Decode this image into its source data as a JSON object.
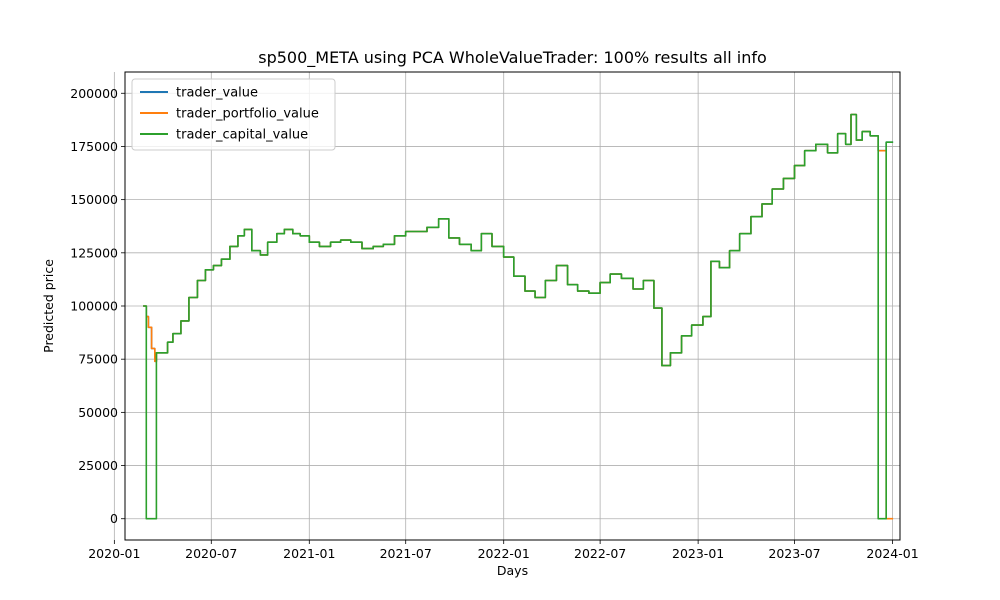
{
  "chart_data": {
    "type": "line",
    "title": "sp500_META using PCA WholeValueTrader: 100% results all info",
    "xlabel": "Days",
    "ylabel": "Predicted price",
    "xlim": [
      "2020-01-21",
      "2024-01-15"
    ],
    "ylim": [
      -10000,
      210000
    ],
    "x_ticks": [
      "2020-01",
      "2020-07",
      "2021-01",
      "2021-07",
      "2022-01",
      "2022-07",
      "2023-01",
      "2023-07",
      "2024-01"
    ],
    "y_ticks": [
      0,
      25000,
      50000,
      75000,
      100000,
      125000,
      150000,
      175000,
      200000
    ],
    "grid": true,
    "legend_position": "top-left",
    "colors": {
      "trader_value": "#1f77b4",
      "trader_portfolio_value": "#ff7f0e",
      "trader_capital_value": "#2ca02c"
    },
    "series": [
      {
        "name": "trader_value",
        "x": [
          "2020-02-24",
          "2020-03-01",
          "2020-03-05",
          "2020-03-11",
          "2020-03-17",
          "2020-03-20",
          "2020-04-10",
          "2020-04-20",
          "2020-05-05",
          "2020-05-20",
          "2020-06-05",
          "2020-06-20",
          "2020-07-05",
          "2020-07-20",
          "2020-08-05",
          "2020-08-20",
          "2020-09-01",
          "2020-09-15",
          "2020-10-01",
          "2020-10-15",
          "2020-11-01",
          "2020-11-15",
          "2020-12-01",
          "2020-12-15",
          "2021-01-01",
          "2021-01-20",
          "2021-02-10",
          "2021-03-01",
          "2021-03-20",
          "2021-04-10",
          "2021-05-01",
          "2021-05-20",
          "2021-06-10",
          "2021-07-01",
          "2021-07-20",
          "2021-08-10",
          "2021-09-01",
          "2021-09-20",
          "2021-10-10",
          "2021-11-01",
          "2021-11-20",
          "2021-12-10",
          "2022-01-01",
          "2022-01-20",
          "2022-02-10",
          "2022-03-01",
          "2022-03-20",
          "2022-04-10",
          "2022-05-01",
          "2022-05-20",
          "2022-06-10",
          "2022-07-01",
          "2022-07-20",
          "2022-08-10",
          "2022-09-01",
          "2022-09-20",
          "2022-10-10",
          "2022-10-25",
          "2022-11-10",
          "2022-12-01",
          "2022-12-20",
          "2023-01-10",
          "2023-01-25",
          "2023-02-10",
          "2023-03-01",
          "2023-03-20",
          "2023-04-10",
          "2023-05-01",
          "2023-05-20",
          "2023-06-10",
          "2023-07-01",
          "2023-07-20",
          "2023-08-10",
          "2023-09-01",
          "2023-09-20",
          "2023-10-05",
          "2023-10-15",
          "2023-10-25",
          "2023-11-05",
          "2023-11-20",
          "2023-12-05",
          "2023-12-20",
          "2024-01-02"
        ],
        "values": [
          100000,
          95000,
          90000,
          80000,
          74000,
          78000,
          83000,
          87000,
          93000,
          104000,
          112000,
          117000,
          119000,
          122000,
          128000,
          133000,
          136000,
          126000,
          124000,
          130000,
          134000,
          136000,
          134000,
          133000,
          130000,
          128000,
          130000,
          131000,
          130000,
          127000,
          128000,
          129000,
          133000,
          135000,
          135000,
          137000,
          141000,
          132000,
          129000,
          126000,
          134000,
          128000,
          123000,
          114000,
          107000,
          104000,
          112000,
          119000,
          110000,
          107000,
          106000,
          111000,
          115000,
          113000,
          108000,
          112000,
          99000,
          72000,
          78000,
          86000,
          91000,
          95000,
          121000,
          118000,
          126000,
          134000,
          142000,
          148000,
          155000,
          160000,
          166000,
          173000,
          176000,
          172000,
          181000,
          176000,
          190000,
          178000,
          182000,
          180000,
          173000,
          177000,
          177000
        ]
      },
      {
        "name": "trader_portfolio_value",
        "x": [
          "2020-02-24",
          "2020-03-01",
          "2020-03-05",
          "2020-03-11",
          "2020-03-17",
          "2020-03-20",
          "2020-04-10",
          "2020-04-20",
          "2020-05-05",
          "2020-05-20",
          "2020-06-05",
          "2020-06-20",
          "2020-07-05",
          "2020-07-20",
          "2020-08-05",
          "2020-08-20",
          "2020-09-01",
          "2020-09-15",
          "2020-10-01",
          "2020-10-15",
          "2020-11-01",
          "2020-11-15",
          "2020-12-01",
          "2020-12-15",
          "2021-01-01",
          "2021-01-20",
          "2021-02-10",
          "2021-03-01",
          "2021-03-20",
          "2021-04-10",
          "2021-05-01",
          "2021-05-20",
          "2021-06-10",
          "2021-07-01",
          "2021-07-20",
          "2021-08-10",
          "2021-09-01",
          "2021-09-20",
          "2021-10-10",
          "2021-11-01",
          "2021-11-20",
          "2021-12-10",
          "2022-01-01",
          "2022-01-20",
          "2022-02-10",
          "2022-03-01",
          "2022-03-20",
          "2022-04-10",
          "2022-05-01",
          "2022-05-20",
          "2022-06-10",
          "2022-07-01",
          "2022-07-20",
          "2022-08-10",
          "2022-09-01",
          "2022-09-20",
          "2022-10-10",
          "2022-10-25",
          "2022-11-10",
          "2022-12-01",
          "2022-12-20",
          "2023-01-10",
          "2023-01-25",
          "2023-02-10",
          "2023-03-01",
          "2023-03-20",
          "2023-04-10",
          "2023-05-01",
          "2023-05-20",
          "2023-06-10",
          "2023-07-01",
          "2023-07-20",
          "2023-08-10",
          "2023-09-01",
          "2023-09-20",
          "2023-10-05",
          "2023-10-15",
          "2023-10-25",
          "2023-11-05",
          "2023-11-20",
          "2023-12-05",
          "2023-12-20",
          "2024-01-02"
        ],
        "values": [
          100000,
          95000,
          90000,
          80000,
          74000,
          78000,
          83000,
          87000,
          93000,
          104000,
          112000,
          117000,
          119000,
          122000,
          128000,
          133000,
          136000,
          126000,
          124000,
          130000,
          134000,
          136000,
          134000,
          133000,
          130000,
          128000,
          130000,
          131000,
          130000,
          127000,
          128000,
          129000,
          133000,
          135000,
          135000,
          137000,
          141000,
          132000,
          129000,
          126000,
          134000,
          128000,
          123000,
          114000,
          107000,
          104000,
          112000,
          119000,
          110000,
          107000,
          106000,
          111000,
          115000,
          113000,
          108000,
          112000,
          99000,
          72000,
          78000,
          86000,
          91000,
          95000,
          121000,
          118000,
          126000,
          134000,
          142000,
          148000,
          155000,
          160000,
          166000,
          173000,
          176000,
          172000,
          181000,
          176000,
          190000,
          178000,
          182000,
          180000,
          173000,
          0,
          0
        ]
      },
      {
        "name": "trader_capital_value",
        "x": [
          "2020-02-24",
          "2020-03-01",
          "2020-03-05",
          "2020-03-11",
          "2020-03-17",
          "2020-03-20",
          "2020-04-10",
          "2020-04-20",
          "2020-05-05",
          "2020-05-20",
          "2020-06-05",
          "2020-06-20",
          "2020-07-05",
          "2020-07-20",
          "2020-08-05",
          "2020-08-20",
          "2020-09-01",
          "2020-09-15",
          "2020-10-01",
          "2020-10-15",
          "2020-11-01",
          "2020-11-15",
          "2020-12-01",
          "2020-12-15",
          "2021-01-01",
          "2021-01-20",
          "2021-02-10",
          "2021-03-01",
          "2021-03-20",
          "2021-04-10",
          "2021-05-01",
          "2021-05-20",
          "2021-06-10",
          "2021-07-01",
          "2021-07-20",
          "2021-08-10",
          "2021-09-01",
          "2021-09-20",
          "2021-10-10",
          "2021-11-01",
          "2021-11-20",
          "2021-12-10",
          "2022-01-01",
          "2022-01-20",
          "2022-02-10",
          "2022-03-01",
          "2022-03-20",
          "2022-04-10",
          "2022-05-01",
          "2022-05-20",
          "2022-06-10",
          "2022-07-01",
          "2022-07-20",
          "2022-08-10",
          "2022-09-01",
          "2022-09-20",
          "2022-10-10",
          "2022-10-25",
          "2022-11-10",
          "2022-12-01",
          "2022-12-20",
          "2023-01-10",
          "2023-01-25",
          "2023-02-10",
          "2023-03-01",
          "2023-03-20",
          "2023-04-10",
          "2023-05-01",
          "2023-05-20",
          "2023-06-10",
          "2023-07-01",
          "2023-07-20",
          "2023-08-10",
          "2023-09-01",
          "2023-09-20",
          "2023-10-05",
          "2023-10-15",
          "2023-10-25",
          "2023-11-05",
          "2023-11-20",
          "2023-12-05",
          "2023-12-20",
          "2024-01-02"
        ],
        "values": [
          100000,
          0,
          0,
          0,
          0,
          78000,
          83000,
          87000,
          93000,
          104000,
          112000,
          117000,
          119000,
          122000,
          128000,
          133000,
          136000,
          126000,
          124000,
          130000,
          134000,
          136000,
          134000,
          133000,
          130000,
          128000,
          130000,
          131000,
          130000,
          127000,
          128000,
          129000,
          133000,
          135000,
          135000,
          137000,
          141000,
          132000,
          129000,
          126000,
          134000,
          128000,
          123000,
          114000,
          107000,
          104000,
          112000,
          119000,
          110000,
          107000,
          106000,
          111000,
          115000,
          113000,
          108000,
          112000,
          99000,
          72000,
          78000,
          86000,
          91000,
          95000,
          121000,
          118000,
          126000,
          134000,
          142000,
          148000,
          155000,
          160000,
          166000,
          173000,
          176000,
          172000,
          181000,
          176000,
          190000,
          178000,
          182000,
          180000,
          0,
          177000,
          177000
        ]
      }
    ]
  }
}
